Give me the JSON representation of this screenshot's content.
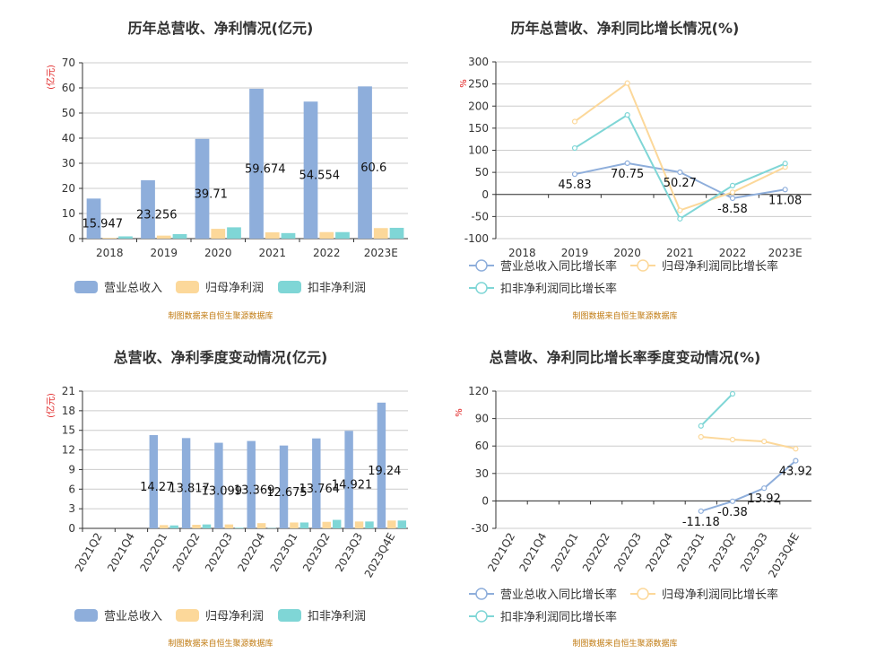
{
  "credit": "制图数据来自恒生聚源数据库",
  "legend_bar": [
    "营业总收入",
    "归母净利润",
    "扣非净利润"
  ],
  "legend_line": [
    "营业总收入同比增长率",
    "归母净利润同比增长率",
    "扣非净利润同比增长率"
  ],
  "colors": {
    "revenue_bar": "#8eaedb",
    "profit_bar": "#fcd89a",
    "deducted_bar": "#7fd6d6",
    "revenue_line": "#8eaedb",
    "profit_line": "#fcd89a",
    "deducted_line": "#7fd6d6"
  },
  "chart_data": [
    {
      "id": "annual_amount",
      "type": "bar",
      "title": "历年总营收、净利情况(亿元)",
      "unit": "(亿元)",
      "categories": [
        "2018",
        "2019",
        "2020",
        "2021",
        "2022",
        "2023E"
      ],
      "ylim": [
        0,
        70
      ],
      "yticks": [
        0,
        10,
        20,
        30,
        40,
        50,
        60,
        70
      ],
      "series": [
        {
          "name": "营业总收入",
          "values": [
            15.947,
            23.256,
            39.71,
            59.674,
            54.554,
            60.6
          ],
          "labels": [
            "15.947",
            "23.256",
            "39.71",
            "59.674",
            "54.554",
            "60.6"
          ]
        },
        {
          "name": "归母净利润",
          "values": [
            0.3,
            1.2,
            3.9,
            2.5,
            2.6,
            4.2
          ]
        },
        {
          "name": "扣非净利润",
          "values": [
            0.9,
            1.8,
            4.5,
            2.2,
            2.6,
            4.3
          ]
        }
      ]
    },
    {
      "id": "annual_growth",
      "type": "line",
      "title": "历年总营收、净利同比增长情况(%)",
      "unit": "%",
      "categories": [
        "2018",
        "2019",
        "2020",
        "2021",
        "2022",
        "2023E"
      ],
      "ylim": [
        -100,
        300
      ],
      "yticks": [
        -100,
        -50,
        0,
        50,
        100,
        150,
        200,
        250,
        300
      ],
      "series": [
        {
          "name": "营业总收入同比增长率",
          "values": [
            null,
            45.83,
            70.75,
            50.27,
            -8.58,
            11.08
          ],
          "labels": [
            null,
            "45.83",
            "70.75",
            "50.27",
            "-8.58",
            "11.08"
          ]
        },
        {
          "name": "归母净利润同比增长率",
          "values": [
            null,
            165,
            252,
            -36,
            5,
            62
          ]
        },
        {
          "name": "扣非净利润同比增长率",
          "values": [
            null,
            105,
            180,
            -55,
            20,
            70
          ]
        }
      ]
    },
    {
      "id": "quarterly_amount",
      "type": "bar",
      "title": "总营收、净利季度变动情况(亿元)",
      "unit": "(亿元)",
      "categories": [
        "2021Q2",
        "2021Q4",
        "2022Q1",
        "2022Q2",
        "2022Q3",
        "2022Q4",
        "2023Q1",
        "2023Q2",
        "2023Q3",
        "2023Q4E"
      ],
      "ylim": [
        0,
        21
      ],
      "yticks": [
        0,
        3,
        6,
        9,
        12,
        15,
        18,
        21
      ],
      "series": [
        {
          "name": "营业总收入",
          "values": [
            0,
            0,
            14.27,
            13.817,
            13.099,
            13.369,
            12.675,
            13.764,
            14.921,
            19.24
          ],
          "labels": [
            null,
            null,
            "14.27",
            "13.817",
            "13.099",
            "13.369",
            "12.675",
            "13.764",
            "14.921",
            "19.24"
          ]
        },
        {
          "name": "归母净利润",
          "values": [
            0,
            0,
            0.5,
            0.55,
            0.6,
            0.8,
            0.9,
            1.0,
            1.05,
            1.2
          ]
        },
        {
          "name": "扣非净利润",
          "values": [
            0,
            0,
            0.45,
            0.6,
            0.1,
            0.05,
            0.9,
            1.3,
            1.05,
            1.2
          ]
        }
      ]
    },
    {
      "id": "quarterly_growth",
      "type": "line",
      "title": "总营收、净利同比增长率季度变动情况(%)",
      "unit": "%",
      "categories": [
        "2021Q2",
        "2021Q4",
        "2022Q1",
        "2022Q2",
        "2022Q3",
        "2022Q4",
        "2023Q1",
        "2023Q2",
        "2023Q3",
        "2023Q4E"
      ],
      "ylim": [
        -30,
        120
      ],
      "yticks": [
        -30,
        0,
        30,
        60,
        90,
        120
      ],
      "series": [
        {
          "name": "营业总收入同比增长率",
          "values": [
            null,
            null,
            null,
            null,
            null,
            null,
            -11.18,
            -0.38,
            13.92,
            43.92
          ],
          "labels": [
            null,
            null,
            null,
            null,
            null,
            null,
            "-11.18",
            "-0.38",
            "13.92",
            "43.92"
          ]
        },
        {
          "name": "归母净利润同比增长率",
          "values": [
            null,
            null,
            null,
            null,
            null,
            null,
            70,
            67,
            65,
            57
          ]
        },
        {
          "name": "扣非净利润同比增长率",
          "values": [
            null,
            null,
            null,
            null,
            null,
            null,
            82,
            117,
            null,
            null
          ]
        }
      ]
    }
  ]
}
